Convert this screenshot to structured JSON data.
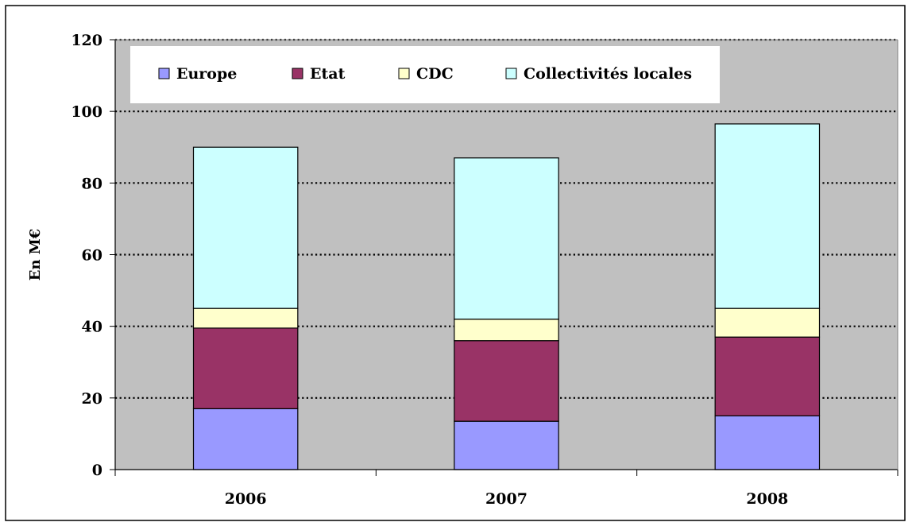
{
  "chart_data": {
    "type": "bar",
    "stacked": true,
    "categories": [
      "2006",
      "2007",
      "2008"
    ],
    "series": [
      {
        "name": "Europe",
        "color": "#9999ff",
        "values": [
          17,
          13.5,
          15
        ]
      },
      {
        "name": "Etat",
        "color": "#993366",
        "values": [
          22.5,
          22.5,
          22
        ]
      },
      {
        "name": "CDC",
        "color": "#ffffcc",
        "values": [
          5.5,
          6,
          8
        ]
      },
      {
        "name": "Collectivités locales",
        "color": "#ccffff",
        "values": [
          45,
          45,
          51.5
        ]
      }
    ],
    "title": "",
    "xlabel": "",
    "ylabel": "En M€",
    "ylim": [
      0,
      120
    ],
    "yticks": [
      "0",
      "20",
      "40",
      "60",
      "80",
      "100",
      "120"
    ],
    "grid": true,
    "legend_position": "top",
    "plot_background": "#c0c0c0"
  }
}
